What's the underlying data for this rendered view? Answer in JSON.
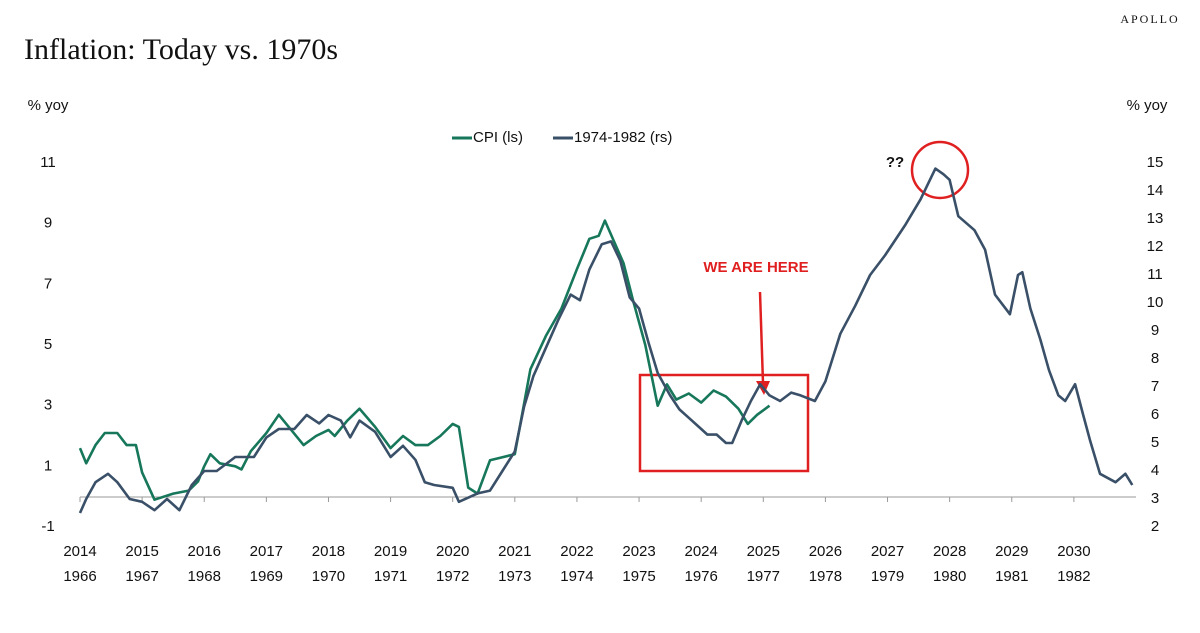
{
  "chart_data": {
    "type": "line",
    "brand": "APOLLO",
    "title": "Inflation: Today vs. 1970s",
    "y_label": "% yoy",
    "y2_label": "% yoy",
    "annotations": [
      "WE ARE HERE",
      "??"
    ],
    "legend": "top",
    "xlim": [
      2014,
      2031
    ],
    "xticks": [
      2014,
      2015,
      2016,
      2017,
      2018,
      2019,
      2020,
      2021,
      2022,
      2023,
      2024,
      2025,
      2026,
      2027,
      2028,
      2029,
      2030
    ],
    "x2lim": [
      1966,
      1983
    ],
    "x2ticks": [
      1966,
      1967,
      1968,
      1969,
      1970,
      1971,
      1972,
      1973,
      1974,
      1975,
      1976,
      1977,
      1978,
      1979,
      1980,
      1981,
      1982
    ],
    "ylim": [
      -1,
      11
    ],
    "yticks": [
      -1,
      1,
      3,
      5,
      7,
      9,
      11
    ],
    "y2lim": [
      2,
      15
    ],
    "y2ticks": [
      2,
      3,
      4,
      5,
      6,
      7,
      8,
      9,
      10,
      11,
      12,
      13,
      14,
      15
    ],
    "series": [
      {
        "name": "CPI (ls)",
        "color": "#17775a",
        "x": [
          2014.0,
          2014.1,
          2014.25,
          2014.4,
          2014.6,
          2014.75,
          2014.9,
          2015.0,
          2015.2,
          2015.5,
          2015.75,
          2015.9,
          2016.0,
          2016.1,
          2016.25,
          2016.5,
          2016.6,
          2016.75,
          2017.0,
          2017.2,
          2017.4,
          2017.6,
          2017.8,
          2018.0,
          2018.1,
          2018.3,
          2018.5,
          2018.75,
          2019.0,
          2019.2,
          2019.4,
          2019.6,
          2019.8,
          2020.0,
          2020.1,
          2020.25,
          2020.4,
          2020.6,
          2020.8,
          2021.0,
          2021.25,
          2021.5,
          2021.75,
          2022.0,
          2022.2,
          2022.35,
          2022.45,
          2022.6,
          2022.75,
          2022.9,
          2023.1,
          2023.3,
          2023.45,
          2023.6,
          2023.8,
          2024.0,
          2024.2,
          2024.4,
          2024.6,
          2024.75,
          2024.9,
          2025.1
        ],
        "values": [
          1.6,
          1.1,
          1.7,
          2.1,
          2.1,
          1.7,
          1.7,
          0.8,
          -0.1,
          0.1,
          0.2,
          0.5,
          1.0,
          1.4,
          1.1,
          1.0,
          0.9,
          1.5,
          2.1,
          2.7,
          2.2,
          1.7,
          2.0,
          2.2,
          2.0,
          2.5,
          2.9,
          2.3,
          1.6,
          2.0,
          1.7,
          1.7,
          2.0,
          2.4,
          2.3,
          0.3,
          0.1,
          1.2,
          1.3,
          1.4,
          4.2,
          5.3,
          6.2,
          7.5,
          8.5,
          8.6,
          9.1,
          8.4,
          7.7,
          6.5,
          5.0,
          3.0,
          3.7,
          3.2,
          3.4,
          3.1,
          3.5,
          3.3,
          2.9,
          2.4,
          2.7,
          3.0
        ]
      },
      {
        "name": "1974-1982 (rs)",
        "color": "#3a5068",
        "axis": "y2",
        "xaxis": "x2",
        "x": [
          1966.0,
          1966.1,
          1966.25,
          1966.45,
          1966.6,
          1966.8,
          1967.0,
          1967.2,
          1967.4,
          1967.6,
          1967.8,
          1968.0,
          1968.2,
          1968.5,
          1968.8,
          1969.0,
          1969.2,
          1969.45,
          1969.65,
          1969.85,
          1970.0,
          1970.2,
          1970.35,
          1970.5,
          1970.75,
          1971.0,
          1971.2,
          1971.4,
          1971.55,
          1971.7,
          1972.0,
          1972.1,
          1972.4,
          1972.6,
          1972.8,
          1973.0,
          1973.15,
          1973.3,
          1973.5,
          1973.7,
          1973.9,
          1974.05,
          1974.2,
          1974.4,
          1974.55,
          1974.7,
          1974.85,
          1975.0,
          1975.15,
          1975.3,
          1975.5,
          1975.65,
          1975.8,
          1976.0,
          1976.1,
          1976.25,
          1976.4,
          1976.5,
          1976.65,
          1976.8,
          1976.95,
          1977.1,
          1977.27,
          1977.45,
          1977.6,
          1977.83,
          1978.0,
          1978.24,
          1978.48,
          1978.72,
          1978.96,
          1979.29,
          1979.53,
          1979.77,
          1979.9,
          1980.0,
          1980.14,
          1980.4,
          1980.57,
          1980.73,
          1980.97,
          1981.1,
          1981.17,
          1981.3,
          1981.46,
          1981.6,
          1981.75,
          1981.86,
          1982.02,
          1982.15,
          1982.26,
          1982.42,
          1982.67,
          1982.83,
          1982.94
        ],
        "values": [
          2.5,
          3.0,
          3.6,
          3.9,
          3.6,
          3.0,
          2.9,
          2.6,
          3.0,
          2.6,
          3.5,
          4.0,
          4.0,
          4.5,
          4.5,
          5.2,
          5.5,
          5.5,
          6.0,
          5.7,
          6.0,
          5.8,
          5.2,
          5.8,
          5.4,
          4.5,
          4.9,
          4.4,
          3.6,
          3.5,
          3.4,
          2.9,
          3.2,
          3.3,
          4.0,
          4.7,
          6.3,
          7.4,
          8.4,
          9.4,
          10.3,
          10.1,
          11.2,
          12.1,
          12.2,
          11.5,
          10.2,
          9.8,
          8.6,
          7.5,
          6.7,
          6.2,
          5.9,
          5.5,
          5.3,
          5.3,
          5.0,
          5.0,
          5.8,
          6.5,
          7.1,
          6.7,
          6.5,
          6.8,
          6.7,
          6.5,
          7.2,
          8.9,
          9.9,
          11.0,
          11.7,
          12.8,
          13.7,
          14.8,
          14.6,
          14.4,
          13.1,
          12.6,
          11.9,
          10.3,
          9.6,
          11.0,
          11.1,
          9.8,
          8.7,
          7.6,
          6.7,
          6.5,
          7.1,
          6.0,
          5.1,
          3.9,
          3.6,
          3.9,
          3.5
        ]
      }
    ]
  }
}
